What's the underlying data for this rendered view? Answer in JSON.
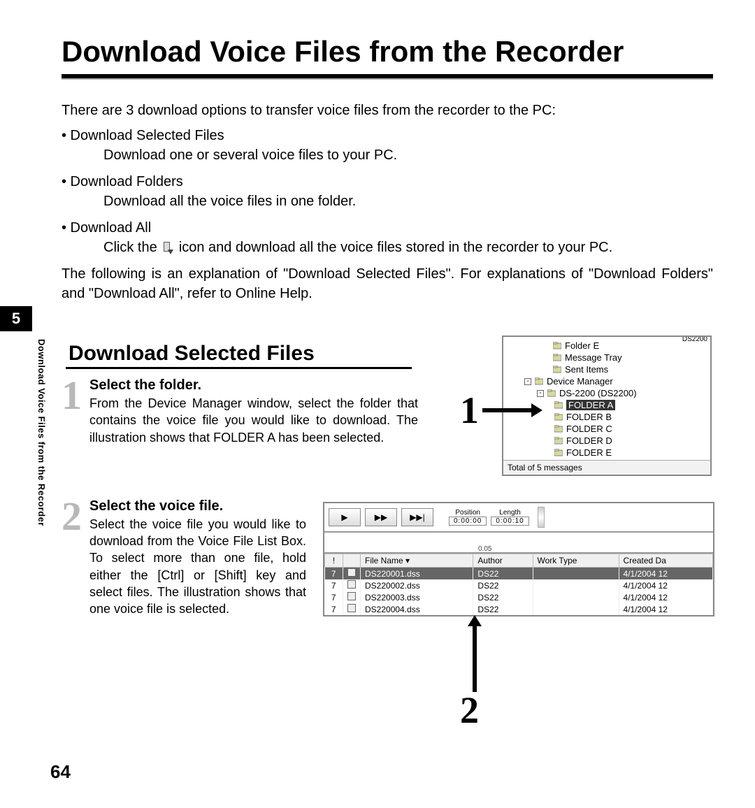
{
  "title": "Download Voice Files from the Recorder",
  "chapter": "5",
  "sideLabel": "Download Voice Files from the Recorder",
  "pageNumber": "64",
  "intro": {
    "lead": "There are 3 download options to transfer voice files from the recorder to the PC:",
    "options": [
      {
        "name": "• Download Selected Files",
        "desc": "Download one or several voice files to your PC."
      },
      {
        "name": "• Download Folders",
        "desc": "Download all the voice files in one folder."
      },
      {
        "name": "• Download All",
        "descPrefix": "Click the ",
        "descSuffix": " icon and download all the voice files stored in the recorder to your PC."
      }
    ],
    "note": "The following is an explanation of \"Download Selected Files\". For explanations of \"Download Folders\" and \"Download All\", refer to Online Help."
  },
  "section": {
    "title": "Download Selected Files",
    "steps": [
      {
        "num": "1",
        "title": "Select the folder.",
        "body": "From the Device Manager window, select the folder that contains the voice file you would like to download. The illustration shows that FOLDER A has been selected."
      },
      {
        "num": "2",
        "title": "Select the voice file.",
        "body": "Select the voice file you would like to download from the Voice File List Box. To select more than one file, hold either the [Ctrl] or [Shift] key and select files. The illustration shows that one voice file is selected."
      }
    ],
    "callouts": {
      "one": "1",
      "two": "2"
    }
  },
  "shot1": {
    "partialTop": "DS2200",
    "rows": [
      {
        "indent": 70,
        "icon": "folder",
        "label": "Folder E",
        "selected": false
      },
      {
        "indent": 70,
        "icon": "tray",
        "label": "Message Tray",
        "selected": false
      },
      {
        "indent": 70,
        "icon": "sent",
        "label": "Sent Items",
        "selected": false
      },
      {
        "indent": 30,
        "box": "-",
        "icon": "device",
        "label": "Device Manager",
        "selected": false
      },
      {
        "indent": 48,
        "box": "-",
        "icon": "recorder",
        "label": "DS-2200 (DS2200)",
        "selected": false
      },
      {
        "indent": 72,
        "icon": "fA",
        "label": "FOLDER A",
        "selected": true
      },
      {
        "indent": 72,
        "icon": "fB",
        "label": "FOLDER B",
        "selected": false
      },
      {
        "indent": 72,
        "icon": "fC",
        "label": "FOLDER C",
        "selected": false
      },
      {
        "indent": 72,
        "icon": "fD",
        "label": "FOLDER D",
        "selected": false
      },
      {
        "indent": 72,
        "icon": "fE",
        "label": "FOLDER E",
        "selected": false
      }
    ],
    "status": "Total of 5 messages"
  },
  "shot2": {
    "media": {
      "play": "▶",
      "ff": "▶▶",
      "skip": "▶▶|",
      "position": {
        "label": "Position",
        "value": "0:00:00"
      },
      "length": {
        "label": "Length",
        "value": "0:00:10"
      }
    },
    "rulerTick": "0.05",
    "columns": [
      "!",
      "",
      "File Name  ▾",
      "Author",
      "Work Type",
      "Created Da"
    ],
    "rows": [
      {
        "pri": "7",
        "name": "DS220001.dss",
        "author": "DS22",
        "work": "",
        "date": "4/1/2004 12",
        "selected": true
      },
      {
        "pri": "7",
        "name": "DS220002.dss",
        "author": "DS22",
        "work": "",
        "date": "4/1/2004 12",
        "selected": false
      },
      {
        "pri": "7",
        "name": "DS220003.dss",
        "author": "DS22",
        "work": "",
        "date": "4/1/2004 12",
        "selected": false
      },
      {
        "pri": "7",
        "name": "DS220004.dss",
        "author": "DS22",
        "work": "",
        "date": "4/1/2004 12",
        "selected": false
      }
    ]
  }
}
